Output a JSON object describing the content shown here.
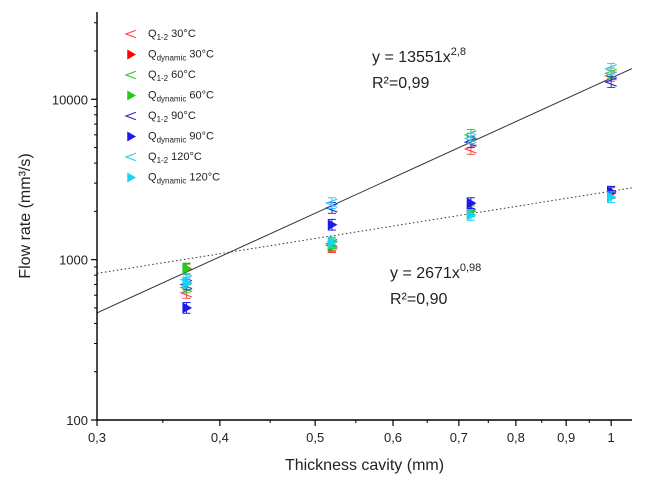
{
  "chart_data": {
    "type": "scatter",
    "xlabel": "Thickness cavity (mm)",
    "ylabel": "Flow rate (mm³/s)",
    "x_scale": "log",
    "y_scale": "log",
    "xlim": [
      0.3,
      1.05
    ],
    "ylim": [
      100,
      35000
    ],
    "x_ticks": [
      0.3,
      0.4,
      0.5,
      0.6,
      0.7,
      0.8,
      0.9,
      1
    ],
    "x_tick_labels": [
      "0,3",
      "0,4",
      "0,5",
      "0,6",
      "0,7",
      "0,8",
      "0,9",
      "1"
    ],
    "y_ticks": [
      100,
      1000,
      10000
    ],
    "y_tick_labels": [
      "100",
      "1000",
      "10000"
    ],
    "grid": false,
    "legend_position": "top-left",
    "series": [
      {
        "name": "Q1-2 30°C",
        "label_main": "Q",
        "label_sub": "1-2",
        "label_tail": " 30°C",
        "marker": "open-left-triangle",
        "color": "#ff4d4d",
        "points": [
          [
            0.37,
            620
          ],
          [
            0.52,
            1230
          ],
          [
            0.72,
            4900
          ],
          [
            1.0,
            14000
          ]
        ]
      },
      {
        "name": "Qdynamic 30°C",
        "label_main": "Q",
        "label_sub": "dynamic",
        "label_tail": " 30°C",
        "marker": "filled-right-triangle",
        "color": "#ff0000",
        "points": [
          [
            0.37,
            870
          ],
          [
            0.52,
            1200
          ],
          [
            0.72,
            2050
          ],
          [
            1.0,
            2600
          ]
        ]
      },
      {
        "name": "Q1-2 60°C",
        "label_main": "Q",
        "label_sub": "1-2",
        "label_tail": " 60°C",
        "marker": "open-left-triangle",
        "color": "#33cc33",
        "points": [
          [
            0.37,
            670
          ],
          [
            0.52,
            1260
          ],
          [
            0.72,
            6000
          ],
          [
            1.0,
            14500
          ]
        ]
      },
      {
        "name": "Qdynamic 60°C",
        "label_main": "Q",
        "label_sub": "dynamic",
        "label_tail": " 60°C",
        "marker": "filled-right-triangle",
        "color": "#22cc22",
        "points": [
          [
            0.37,
            880
          ],
          [
            0.52,
            1220
          ],
          [
            0.72,
            2000
          ],
          [
            1.0,
            2650
          ]
        ]
      },
      {
        "name": "Q1-2 90°C",
        "label_main": "Q",
        "label_sub": "1-2",
        "label_tail": " 90°C",
        "marker": "open-left-triangle",
        "color": "#3333cc",
        "points": [
          [
            0.37,
            700
          ],
          [
            0.52,
            2100
          ],
          [
            0.72,
            5400
          ],
          [
            1.0,
            12800
          ]
        ]
      },
      {
        "name": "Qdynamic 90°C",
        "label_main": "Q",
        "label_sub": "dynamic",
        "label_tail": " 90°C",
        "marker": "filled-right-triangle",
        "color": "#1a1aee",
        "points": [
          [
            0.37,
            500
          ],
          [
            0.52,
            1650
          ],
          [
            0.72,
            2250
          ],
          [
            1.0,
            2650
          ]
        ]
      },
      {
        "name": "Q1-2 120°C",
        "label_main": "Q",
        "label_sub": "1-2",
        "label_tail": " 120°C",
        "marker": "open-left-triangle",
        "color": "#33ccee",
        "points": [
          [
            0.37,
            750
          ],
          [
            0.52,
            2250
          ],
          [
            0.72,
            5700
          ],
          [
            1.0,
            15500
          ]
        ]
      },
      {
        "name": "Qdynamic 120°C",
        "label_main": "Q",
        "label_sub": "dynamic",
        "label_tail": " 120°C",
        "marker": "filled-right-triangle",
        "color": "#19d3f5",
        "points": [
          [
            0.37,
            720
          ],
          [
            0.52,
            1280
          ],
          [
            0.72,
            1900
          ],
          [
            1.0,
            2450
          ]
        ]
      }
    ],
    "fits": [
      {
        "style": "solid",
        "color": "#333333",
        "coef": 13551,
        "exp": 2.8,
        "eq_main": "y = 13551x",
        "eq_exp": "2,8",
        "r2": "R²=0,99"
      },
      {
        "style": "dotted",
        "color": "#333333",
        "coef": 2671,
        "exp": 0.98,
        "eq_main": "y = 2671x",
        "eq_exp": "0,98",
        "r2": "R²=0,90"
      }
    ]
  }
}
